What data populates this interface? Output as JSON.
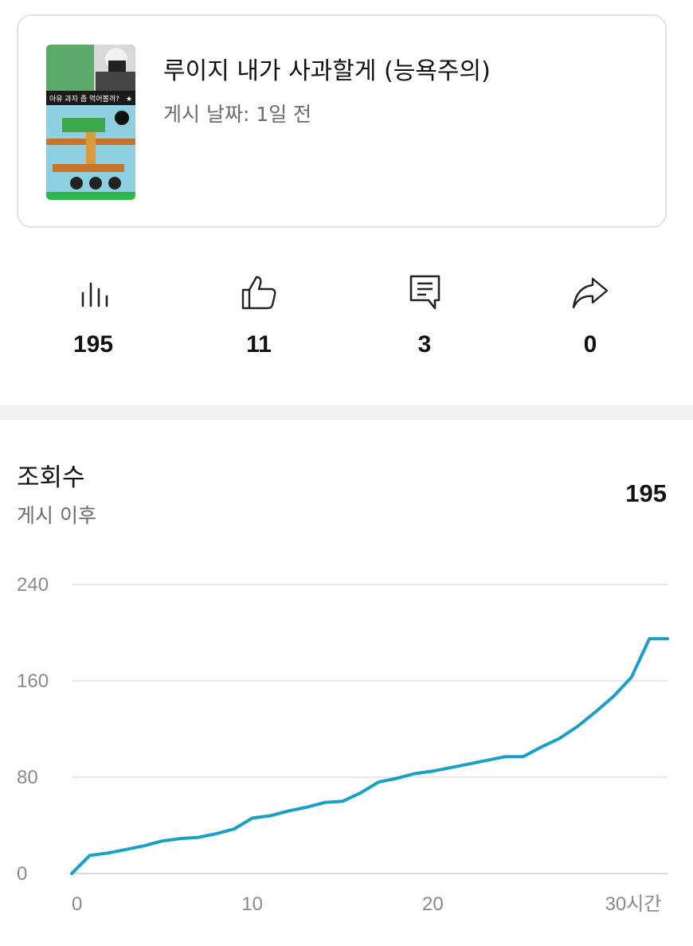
{
  "video": {
    "title": "루이지 내가 사과할게 (능욕주의)",
    "posted": "게시 날짜: 1일 전",
    "thumbnail_caption": "아유 과자 좀 먹어볼까?",
    "thumbnail_overlay_mark": "★"
  },
  "stats": [
    {
      "icon": "bar-chart-icon",
      "value": "195"
    },
    {
      "icon": "thumbs-up-icon",
      "value": "11"
    },
    {
      "icon": "comment-icon",
      "value": "3"
    },
    {
      "icon": "share-icon",
      "value": "0"
    }
  ],
  "views": {
    "title": "조회수",
    "subtitle": "게시 이후",
    "total": "195"
  },
  "colors": {
    "line": "#1a9fc9",
    "grid": "#e0e0e0",
    "axis_text": "#8a8a8a"
  },
  "chart_data": {
    "type": "line",
    "title": "조회수",
    "xlabel": "",
    "ylabel": "",
    "x_unit_label": "시간",
    "xlim": [
      0,
      33
    ],
    "ylim": [
      0,
      240
    ],
    "y_ticks": [
      0,
      80,
      160,
      240
    ],
    "x_ticks": [
      {
        "value": 0,
        "label": "0"
      },
      {
        "value": 10,
        "label": "10"
      },
      {
        "value": 20,
        "label": "20"
      },
      {
        "value": 30,
        "label": "30시간"
      }
    ],
    "series": [
      {
        "name": "조회수",
        "x": [
          0,
          1,
          2,
          3,
          4,
          5,
          6,
          7,
          8,
          9,
          10,
          11,
          12,
          13,
          14,
          15,
          16,
          17,
          18,
          19,
          20,
          21,
          22,
          23,
          24,
          25,
          26,
          27,
          28,
          29,
          30,
          31,
          32,
          33
        ],
        "values": [
          0,
          15,
          17,
          20,
          23,
          27,
          29,
          30,
          33,
          37,
          46,
          48,
          52,
          55,
          59,
          60,
          67,
          76,
          79,
          83,
          85,
          88,
          91,
          94,
          97,
          97,
          105,
          112,
          122,
          134,
          147,
          163,
          195,
          195
        ]
      }
    ]
  }
}
